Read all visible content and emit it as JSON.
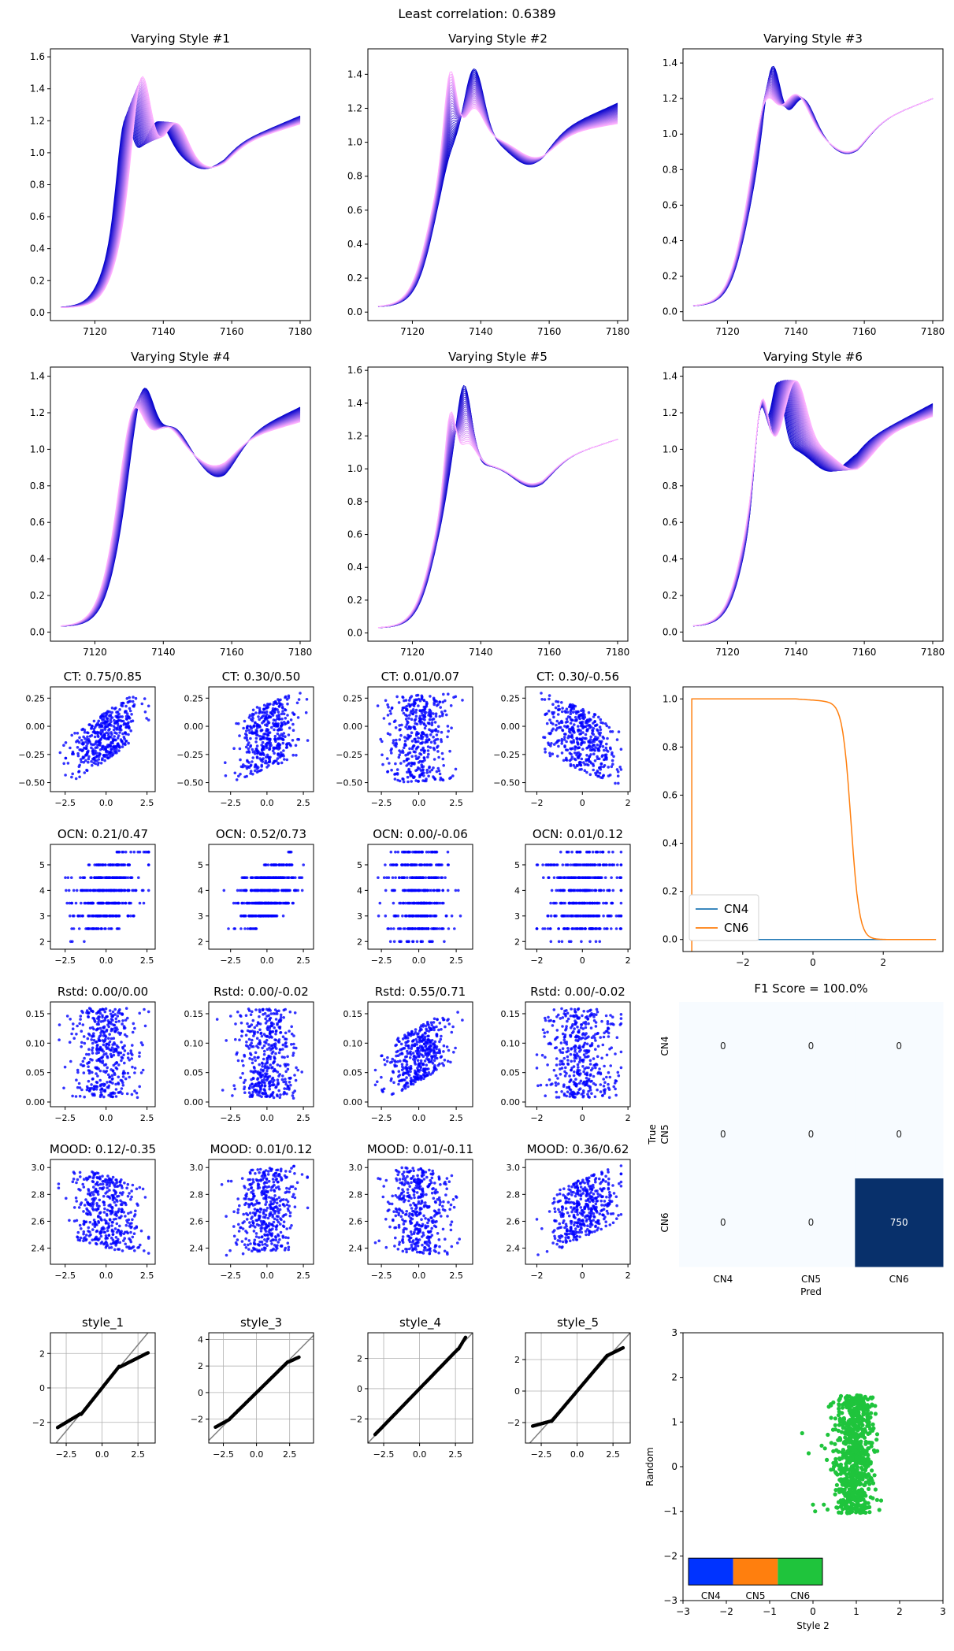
{
  "suptitle": "Least correlation: 0.6389",
  "colors": {
    "start": "#0000cc",
    "end": "#ffb0ff",
    "scatter": "#0000ff",
    "cn4": "#1f77b4",
    "cn6": "#ff7f0e",
    "heat_low": "#f7fbff",
    "heat_high": "#08306b",
    "green": "#1fc43c",
    "cb_blue": "#0033ff",
    "cb_orange": "#ff7f0e",
    "cb_green": "#1fc43c"
  },
  "spectra": {
    "panels": [
      {
        "title": "Varying Style #1",
        "ylim": [
          -0.05,
          1.65
        ],
        "yticks": [
          0.0,
          0.2,
          0.4,
          0.6,
          0.8,
          1.0,
          1.2,
          1.4,
          1.6
        ]
      },
      {
        "title": "Varying Style #2",
        "ylim": [
          -0.05,
          1.55
        ],
        "yticks": [
          0.0,
          0.2,
          0.4,
          0.6,
          0.8,
          1.0,
          1.2,
          1.4
        ]
      },
      {
        "title": "Varying Style #3",
        "ylim": [
          -0.05,
          1.48
        ],
        "yticks": [
          0.0,
          0.2,
          0.4,
          0.6,
          0.8,
          1.0,
          1.2,
          1.4
        ]
      },
      {
        "title": "Varying Style #4",
        "ylim": [
          -0.05,
          1.45
        ],
        "yticks": [
          0.0,
          0.2,
          0.4,
          0.6,
          0.8,
          1.0,
          1.2,
          1.4
        ]
      },
      {
        "title": "Varying Style #5",
        "ylim": [
          -0.05,
          1.62
        ],
        "yticks": [
          0.0,
          0.2,
          0.4,
          0.6,
          0.8,
          1.0,
          1.2,
          1.4,
          1.6
        ]
      },
      {
        "title": "Varying Style #6",
        "ylim": [
          -0.05,
          1.45
        ],
        "yticks": [
          0.0,
          0.2,
          0.4,
          0.6,
          0.8,
          1.0,
          1.2,
          1.4
        ]
      }
    ],
    "xlim": [
      7107,
      7183
    ],
    "xticks": [
      7120,
      7140,
      7160,
      7180
    ]
  },
  "scatter_rows": [
    {
      "prefix": "CT",
      "titles": [
        "CT: 0.75/0.85",
        "CT: 0.30/0.50",
        "CT: 0.01/0.07",
        "CT: 0.30/-0.56"
      ],
      "ylim": [
        -0.58,
        0.35
      ],
      "yticks": [
        -0.5,
        -0.25,
        0.0,
        0.25
      ],
      "ytick_labels": [
        "−0.50",
        "−0.25",
        "0.00",
        "0.25"
      ]
    },
    {
      "prefix": "OCN",
      "titles": [
        "OCN: 0.21/0.47",
        "OCN: 0.52/0.73",
        "OCN: 0.00/-0.06",
        "OCN: 0.01/0.12"
      ],
      "ylim": [
        1.7,
        5.8
      ],
      "yticks": [
        2,
        3,
        4,
        5
      ],
      "ytick_labels": [
        "2",
        "3",
        "4",
        "5"
      ]
    },
    {
      "prefix": "Rstd",
      "titles": [
        "Rstd: 0.00/0.00",
        "Rstd: 0.00/-0.02",
        "Rstd: 0.55/0.71",
        "Rstd: 0.00/-0.02"
      ],
      "ylim": [
        -0.008,
        0.17
      ],
      "yticks": [
        0.0,
        0.05,
        0.1,
        0.15
      ],
      "ytick_labels": [
        "0.00",
        "0.05",
        "0.10",
        "0.15"
      ]
    },
    {
      "prefix": "MOOD",
      "titles": [
        "MOOD: 0.12/-0.35",
        "MOOD: 0.01/0.12",
        "MOOD: 0.01/-0.11",
        "MOOD: 0.36/0.62"
      ],
      "ylim": [
        2.28,
        3.06
      ],
      "yticks": [
        2.4,
        2.6,
        2.8,
        3.0
      ],
      "ytick_labels": [
        "2.4",
        "2.6",
        "2.8",
        "3.0"
      ]
    }
  ],
  "scatter_xaxes": [
    {
      "xlim": [
        -3.4,
        3.0
      ],
      "xticks": [
        -2.5,
        0.0,
        2.5
      ],
      "xtick_labels": [
        "−2.5",
        "0.0",
        "2.5"
      ]
    },
    {
      "xlim": [
        -4.0,
        3.2
      ],
      "xticks": [
        -2.5,
        0.0,
        2.5
      ],
      "xtick_labels": [
        "−2.5",
        "0.0",
        "2.5"
      ]
    },
    {
      "xlim": [
        -3.4,
        3.6
      ],
      "xticks": [
        -2.5,
        0.0,
        2.5
      ],
      "xtick_labels": [
        "−2.5",
        "0.0",
        "2.5"
      ]
    },
    {
      "xlim": [
        -2.5,
        2.1
      ],
      "xticks": [
        -2,
        0,
        2
      ],
      "xtick_labels": [
        "−2",
        "0",
        "2"
      ]
    }
  ],
  "qq": {
    "titles": [
      "style_1",
      "style_3",
      "style_4",
      "style_5"
    ],
    "panels": [
      {
        "xlim": [
          -3.6,
          3.7
        ],
        "ylim": [
          -3.2,
          3.2
        ],
        "xticks": [
          -2.5,
          0.0,
          2.5
        ],
        "xtick_labels": [
          "−2.5",
          "0.0",
          "2.5"
        ],
        "yticks": [
          -2,
          0,
          2
        ],
        "ytick_labels": [
          "−2",
          "0",
          "2"
        ]
      },
      {
        "xlim": [
          -3.6,
          4.3
        ],
        "ylim": [
          -3.8,
          4.5
        ],
        "xticks": [
          -2.5,
          0.0,
          2.5
        ],
        "xtick_labels": [
          "−2.5",
          "0.0",
          "2.5"
        ],
        "yticks": [
          -2,
          0,
          2,
          4
        ],
        "ytick_labels": [
          "−2",
          "0",
          "2",
          "4"
        ]
      },
      {
        "xlim": [
          -3.6,
          3.7
        ],
        "ylim": [
          -3.6,
          3.7
        ],
        "xticks": [
          -2.5,
          0.0,
          2.5
        ],
        "xtick_labels": [
          "−2.5",
          "0.0",
          "2.5"
        ],
        "yticks": [
          -2,
          0,
          2
        ],
        "ytick_labels": [
          "−2",
          "0",
          "2"
        ]
      },
      {
        "xlim": [
          -3.6,
          3.7
        ],
        "ylim": [
          -3.3,
          3.7
        ],
        "xticks": [
          -2.5,
          0.0,
          2.5
        ],
        "xtick_labels": [
          "−2.5",
          "0.0",
          "2.5"
        ],
        "yticks": [
          -2,
          0,
          2
        ],
        "ytick_labels": [
          "−2",
          "0",
          "2"
        ]
      }
    ]
  },
  "prob": {
    "xlim": [
      -3.7,
      3.7
    ],
    "ylim": [
      -0.05,
      1.05
    ],
    "xticks": [
      -2,
      0,
      2
    ],
    "xtick_labels": [
      "−2",
      "0",
      "2"
    ],
    "yticks": [
      0.0,
      0.2,
      0.4,
      0.6,
      0.8,
      1.0
    ],
    "ytick_labels": [
      "0.0",
      "0.2",
      "0.4",
      "0.6",
      "0.8",
      "1.0"
    ],
    "legend": [
      "CN4",
      "CN6"
    ]
  },
  "confusion": {
    "title": "F1 Score = 100.0%",
    "labels": [
      "CN4",
      "CN5",
      "CN6"
    ],
    "matrix": [
      [
        0,
        0,
        0
      ],
      [
        0,
        0,
        0
      ],
      [
        0,
        0,
        750
      ]
    ],
    "xlabel": "Pred",
    "ylabel": "True"
  },
  "embedding": {
    "xlim": [
      -3,
      3
    ],
    "ylim": [
      -3,
      3
    ],
    "xticks": [
      -3,
      -2,
      -1,
      0,
      1,
      2,
      3
    ],
    "xtick_labels": [
      "−3",
      "−2",
      "−1",
      "0",
      "1",
      "2",
      "3"
    ],
    "yticks": [
      -3,
      -2,
      -1,
      0,
      1,
      2,
      3
    ],
    "ytick_labels": [
      "−3",
      "−2",
      "−1",
      "0",
      "1",
      "2",
      "3"
    ],
    "xlabel": "Style 2",
    "ylabel": "Random",
    "colorbar_labels": [
      "CN4",
      "CN5",
      "CN6"
    ]
  },
  "chart_data": [
    {
      "type": "line",
      "title": "Varying Style #1",
      "x_range": [
        7110,
        7180
      ],
      "series_count": 30
    },
    {
      "type": "line",
      "title": "Varying Style #2",
      "x_range": [
        7110,
        7180
      ],
      "series_count": 30
    },
    {
      "type": "line",
      "title": "Varying Style #3",
      "x_range": [
        7110,
        7180
      ],
      "series_count": 30
    },
    {
      "type": "line",
      "title": "Varying Style #4",
      "x_range": [
        7110,
        7180
      ],
      "series_count": 30
    },
    {
      "type": "line",
      "title": "Varying Style #5",
      "x_range": [
        7110,
        7180
      ],
      "series_count": 30
    },
    {
      "type": "line",
      "title": "Varying Style #6",
      "x_range": [
        7110,
        7180
      ],
      "series_count": 30
    },
    {
      "type": "scatter",
      "title": "CT: 0.75/0.85",
      "trend": 0.85
    },
    {
      "type": "scatter",
      "title": "CT: 0.30/0.50",
      "trend": 0.5
    },
    {
      "type": "scatter",
      "title": "CT: 0.01/0.07",
      "trend": 0.07
    },
    {
      "type": "scatter",
      "title": "CT: 0.30/-0.56",
      "trend": -0.56
    },
    {
      "type": "scatter",
      "title": "OCN: 0.21/0.47",
      "trend": 0.47
    },
    {
      "type": "scatter",
      "title": "OCN: 0.52/0.73",
      "trend": 0.73
    },
    {
      "type": "scatter",
      "title": "OCN: 0.00/-0.06",
      "trend": -0.06
    },
    {
      "type": "scatter",
      "title": "OCN: 0.01/0.12",
      "trend": 0.12
    },
    {
      "type": "scatter",
      "title": "Rstd: 0.00/0.00",
      "trend": 0.0
    },
    {
      "type": "scatter",
      "title": "Rstd: 0.00/-0.02",
      "trend": -0.02
    },
    {
      "type": "scatter",
      "title": "Rstd: 0.55/0.71",
      "trend": 0.71
    },
    {
      "type": "scatter",
      "title": "Rstd: 0.00/-0.02",
      "trend": -0.02
    },
    {
      "type": "scatter",
      "title": "MOOD: 0.12/-0.35",
      "trend": -0.35
    },
    {
      "type": "scatter",
      "title": "MOOD: 0.01/0.12",
      "trend": 0.12
    },
    {
      "type": "scatter",
      "title": "MOOD: 0.01/-0.11",
      "trend": -0.11
    },
    {
      "type": "scatter",
      "title": "MOOD: 0.36/0.62",
      "trend": 0.62
    },
    {
      "type": "scatter",
      "title": "style_1"
    },
    {
      "type": "scatter",
      "title": "style_3"
    },
    {
      "type": "scatter",
      "title": "style_4"
    },
    {
      "type": "scatter",
      "title": "style_5"
    },
    {
      "type": "line",
      "title": "",
      "series": [
        {
          "name": "CN4",
          "x": [
            -3.5,
            3.5
          ],
          "y": [
            0.0,
            0.0
          ]
        },
        {
          "name": "CN6",
          "x": [
            -3.45,
            -3.45,
            -3.4,
            0.0,
            0.6,
            0.9,
            1.0,
            1.1,
            1.2,
            1.35,
            1.5,
            3.5
          ],
          "y": [
            0.0,
            1.0,
            1.0,
            0.995,
            0.975,
            0.9,
            0.75,
            0.5,
            0.25,
            0.08,
            0.0,
            0.0
          ]
        }
      ],
      "ylim": [
        0,
        1
      ]
    },
    {
      "type": "heatmap",
      "title": "F1 Score = 100.0%",
      "categories": [
        "CN4",
        "CN5",
        "CN6"
      ],
      "values": [
        [
          0,
          0,
          0
        ],
        [
          0,
          0,
          0
        ],
        [
          0,
          0,
          750
        ]
      ],
      "xlabel": "Pred",
      "ylabel": "True"
    },
    {
      "type": "scatter",
      "title": "",
      "xlabel": "Style 2",
      "ylabel": "Random",
      "x_range": [
        0.0,
        1.6
      ],
      "y_range": [
        -1.05,
        1.6
      ],
      "series": [
        {
          "name": "CN6",
          "count": 750
        }
      ]
    }
  ]
}
